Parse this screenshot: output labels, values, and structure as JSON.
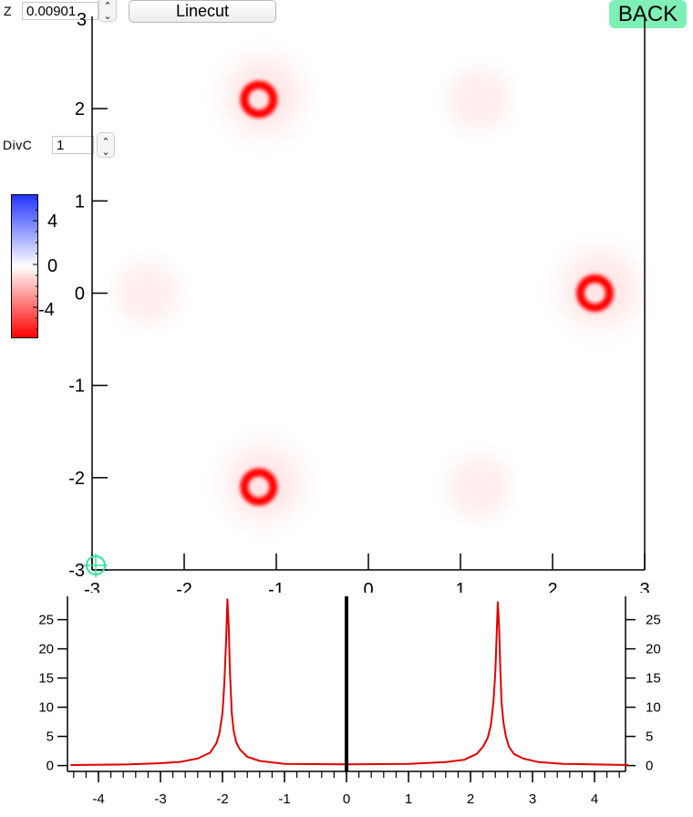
{
  "controls": {
    "z_label": "Z",
    "z_value": "0.00901",
    "linecut_label": "Linecut",
    "back_label": "BACK",
    "divc_label": "DivC",
    "divc_value": "1"
  },
  "colorbar": {
    "tick_labels": [
      "4",
      "0",
      "-4"
    ],
    "colors": {
      "top": "#2233ff",
      "mid": "#ffffff",
      "bottom": "#ff0000"
    }
  },
  "main_plot": {
    "x_ticks": [
      "-3",
      "-2",
      "-1",
      "0",
      "1",
      "2",
      "3"
    ],
    "y_ticks": [
      "2",
      "1",
      "0",
      "-1",
      "-2",
      "-3"
    ],
    "top_partial_tick": "3"
  },
  "chart_data": [
    {
      "type": "heatmap",
      "title": "",
      "xlabel": "",
      "ylabel": "",
      "xlim": [
        -3,
        3
      ],
      "ylim": [
        -3,
        3
      ],
      "colorscale": {
        "min": -6,
        "max": 6,
        "low_color": "#ff0000",
        "mid_color": "#ffffff",
        "high_color": "#2233ff"
      },
      "features": [
        {
          "kind": "ring",
          "x": -1.2,
          "y": 2.1,
          "value": -6
        },
        {
          "kind": "ring",
          "x": 2.45,
          "y": 0.0,
          "value": -6
        },
        {
          "kind": "ring",
          "x": -1.2,
          "y": -2.1,
          "value": -6
        },
        {
          "kind": "faint",
          "x": 1.2,
          "y": 2.1,
          "value": -0.4
        },
        {
          "kind": "faint",
          "x": -2.4,
          "y": 0.0,
          "value": -0.4
        },
        {
          "kind": "faint",
          "x": 1.2,
          "y": -2.1,
          "value": -0.4
        }
      ],
      "cursor": {
        "x": -3,
        "y": -3
      }
    },
    {
      "type": "line",
      "title": "",
      "xlabel": "",
      "ylabel": "",
      "xlim": [
        -4.5,
        4.5
      ],
      "ylim": [
        -1,
        29
      ],
      "x_ticks": [
        "-4",
        "-3",
        "-2",
        "-1",
        "0",
        "1",
        "2",
        "3",
        "4"
      ],
      "y_ticks": [
        "0",
        "5",
        "10",
        "15",
        "20",
        "25"
      ],
      "series": [
        {
          "color": "#e00000",
          "x": [
            -4.45,
            -3.5,
            -3.0,
            -2.7,
            -2.4,
            -2.2,
            -2.1,
            -2.05,
            -2.0,
            -1.97,
            -1.94,
            -1.92,
            -1.9,
            -1.88,
            -1.85,
            -1.82,
            -1.78,
            -1.72,
            -1.6,
            -1.4,
            -1.0,
            0.0,
            1.0,
            1.6,
            1.9,
            2.1,
            2.2,
            2.28,
            2.33,
            2.37,
            2.4,
            2.42,
            2.44,
            2.46,
            2.48,
            2.5,
            2.53,
            2.57,
            2.62,
            2.7,
            2.85,
            3.1,
            3.5,
            4.55
          ],
          "y": [
            0.1,
            0.2,
            0.4,
            0.6,
            1.2,
            2.2,
            3.8,
            5.5,
            9,
            14,
            22,
            28.5,
            24,
            16,
            9,
            6,
            4,
            2.8,
            1.5,
            0.8,
            0.3,
            0.2,
            0.3,
            0.6,
            1.0,
            2.0,
            3.2,
            4.8,
            7.0,
            11,
            16,
            22,
            28,
            24,
            17,
            11,
            7.5,
            5,
            3.2,
            2.0,
            1.2,
            0.6,
            0.3,
            0.1
          ]
        }
      ],
      "marker_line": {
        "x": 0.0,
        "color": "#000000"
      }
    }
  ]
}
